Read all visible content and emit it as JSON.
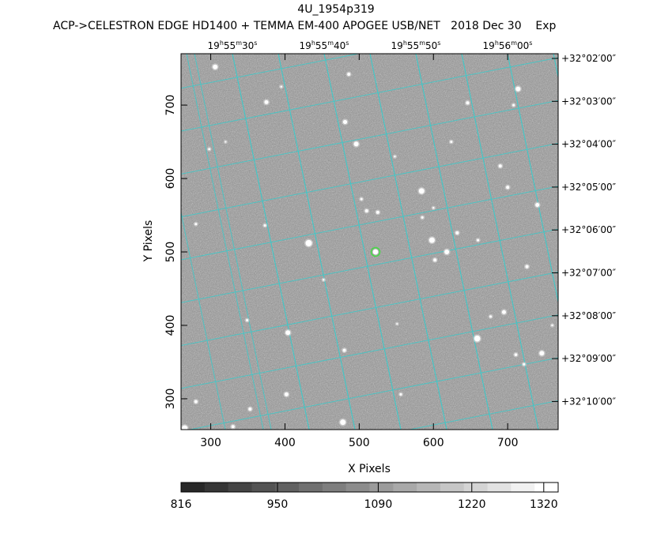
{
  "header": {
    "object_name": "4U_1954p319",
    "instrument_line": "ACP->CELESTRON EDGE HD1400 + TEMMA EM-400 APOGEE USB/NET   2018 Dec 30    Exp"
  },
  "axes": {
    "xlabel": "X Pixels",
    "ylabel": "Y Pixels",
    "x_ticks": [
      "300",
      "400",
      "500",
      "600",
      "700"
    ],
    "y_ticks": [
      "300",
      "400",
      "500",
      "600",
      "700"
    ],
    "xlim": [
      260,
      768
    ],
    "ylim": [
      258,
      770
    ]
  },
  "ra_labels": [
    {
      "h": "19",
      "m": "55",
      "s": "30"
    },
    {
      "h": "19",
      "m": "55",
      "s": "40"
    },
    {
      "h": "19",
      "m": "55",
      "s": "50"
    },
    {
      "h": "19",
      "m": "56",
      "s": "00"
    }
  ],
  "dec_labels": [
    "+32°02′00″",
    "+32°03′00″",
    "+32°04′00″",
    "+32°05′00″",
    "+32°06′00″",
    "+32°07′00″",
    "+32°08′00″",
    "+32°09′00″",
    "+32°10′00″"
  ],
  "colorbar": {
    "tick_labels": [
      "816",
      "950",
      "1090",
      "1220",
      "1320"
    ],
    "range": [
      816,
      1340
    ],
    "levels": 16
  },
  "colors": {
    "grid": "#3fc9c9",
    "target_marker": "#44dd44",
    "background_sky": "#8a8a8a"
  },
  "target": {
    "x": 522,
    "y": 500
  }
}
